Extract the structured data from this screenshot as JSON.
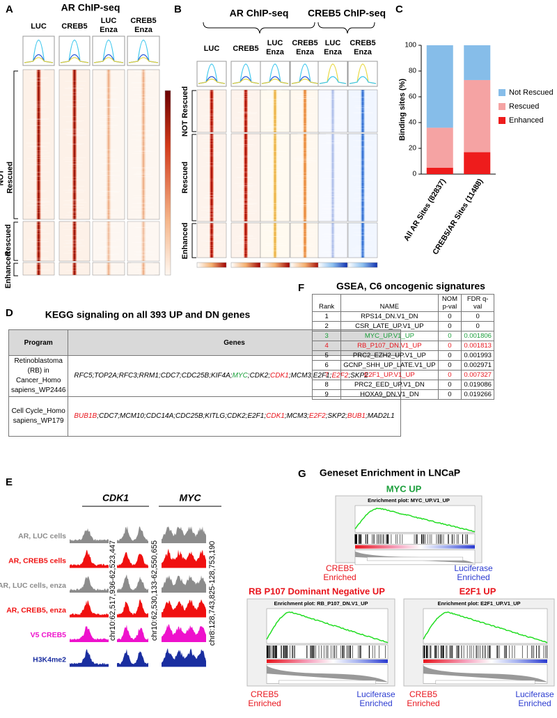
{
  "chart_data": {
    "type": "stacked_bar",
    "panel_label": "C",
    "ylabel": "Binding sites (%)",
    "categories": [
      "All AR Sites (82837)",
      "CREB5/AR Sites (11488)"
    ],
    "series": [
      {
        "name": "Enhanced",
        "color": "#ee1c1c",
        "values": [
          5,
          17
        ]
      },
      {
        "name": "Rescued",
        "color": "#f5a3a3",
        "values": [
          31,
          56
        ]
      },
      {
        "name": "Not Rescued",
        "color": "#86bde9",
        "values": [
          64,
          27
        ]
      }
    ],
    "ylim": [
      0,
      100
    ],
    "yticks": [
      0,
      20,
      40,
      60,
      80,
      100
    ],
    "legend": "right"
  },
  "panels": {
    "A": {
      "label": "A",
      "title": "AR ChIP-seq",
      "columns": [
        [
          "LUC"
        ],
        [
          "CREB5"
        ],
        [
          "LUC",
          "Enza"
        ],
        [
          "CREB5",
          "Enza"
        ]
      ],
      "row_groups": [
        [
          "NOT",
          "Rescued"
        ],
        [
          "Rescued"
        ],
        [
          "Enhanced"
        ]
      ]
    },
    "B": {
      "label": "B",
      "titles": [
        "AR ChIP-seq",
        "CREB5 ChIP-seq"
      ],
      "columns": [
        [
          "LUC"
        ],
        [
          "CREB5"
        ],
        [
          "LUC",
          "Enza"
        ],
        [
          "CREB5",
          "Enza"
        ],
        [
          "LUC",
          "Enza"
        ],
        [
          "CREB5",
          "Enza"
        ]
      ],
      "row_groups": [
        [
          "NOT Rescued"
        ],
        [
          "Rescued"
        ],
        [
          "Enhanced"
        ]
      ]
    },
    "D": {
      "label": "D",
      "title": "KEGG signaling on all 393 UP and DN genes",
      "header": [
        "Program",
        "Genes"
      ],
      "separator": ";",
      "rows": [
        {
          "program": "Retinoblastoma (RB) in Cancer_Homo sapiens_WP2446",
          "genes": [
            "RFC5",
            "TOP2A",
            "RFC3",
            "RRM1",
            "CDC7",
            "CDC25B",
            "KIF4A",
            "MYC",
            "CDK2",
            "CDK1",
            "MCM3",
            "E2F1",
            "E2F2",
            "SKP2"
          ],
          "colors": [
            "#000",
            "#000",
            "#000",
            "#000",
            "#000",
            "#000",
            "#000",
            "#1a9e3a",
            "#000",
            "#e8141c",
            "#000",
            "#000",
            "#e8141c",
            "#000"
          ]
        },
        {
          "program": "Cell Cycle_Homo sapiens_WP179",
          "genes": [
            "BUB1B",
            "CDC7",
            "MCM10",
            "CDC14A",
            "CDC25B",
            "KITLG",
            "CDK2",
            "E2F1",
            "CDK1",
            "MCM3",
            "E2F2",
            "SKP2",
            "BUB1",
            "MAD2L1"
          ],
          "colors": [
            "#e8141c",
            "#000",
            "#000",
            "#000",
            "#000",
            "#000",
            "#000",
            "#000",
            "#e8141c",
            "#000",
            "#e8141c",
            "#000",
            "#e8141c",
            "#000"
          ]
        }
      ]
    },
    "E": {
      "label": "E",
      "genes": [
        "CDK1",
        "MYC"
      ],
      "tracks": [
        {
          "label": "AR, LUC cells",
          "color": "#8c8c8c"
        },
        {
          "label": "AR, CREB5 cells",
          "color": "#f01010"
        },
        {
          "label": "AR, LUC cells, enza",
          "color": "#8c8c8c"
        },
        {
          "label": "AR, CREB5, enza",
          "color": "#f01010"
        },
        {
          "label": "V5 CREB5",
          "color": "#ee11cc"
        },
        {
          "label": "H3K4me2",
          "color": "#1a2ea0"
        }
      ],
      "coordinates": [
        "chr10:62,517,936-62,523,447",
        "chr10:62,530,133-62,550,655",
        "chr8:128,743,825-128,753,190"
      ]
    },
    "F": {
      "label": "F",
      "title": "GSEA, C6 oncogenic signatures",
      "header": [
        "Rank",
        "NAME",
        "NOM p-val",
        "FDR q-val"
      ],
      "rows": [
        [
          1,
          "RPS14_DN.V1_DN",
          0,
          0
        ],
        [
          2,
          "CSR_LATE_UP.V1_UP",
          0,
          0
        ],
        [
          3,
          "MYC_UP.V1_UP",
          0,
          0.001806
        ],
        [
          4,
          "RB_P107_DN.V1_UP",
          0,
          0.001813
        ],
        [
          5,
          "PRC2_EZH2_UP.V1_UP",
          0,
          0.001993
        ],
        [
          6,
          "GCNP_SHH_UP_LATE.V1_UP",
          0,
          0.002971
        ],
        [
          7,
          "E2F1_UP.V1_UP",
          0,
          0.007327
        ],
        [
          8,
          "PRC2_EED_UP.V1_DN",
          0,
          0.019086
        ],
        [
          9,
          "HOXA9_DN.V1_DN",
          0,
          0.019266
        ]
      ],
      "row_colors": [
        "#000",
        "#000",
        "#1a9e3a",
        "#e8141c",
        "#000",
        "#000",
        "#e8141c",
        "#000",
        "#000"
      ]
    },
    "G": {
      "label": "G",
      "title": "Geneset Enrichment in LNCaP",
      "left_label": [
        "CREB5",
        "Enriched"
      ],
      "right_label": [
        "Luciferase",
        "Enriched"
      ],
      "plots": [
        {
          "title": "MYC UP",
          "color": "#1a9e3a",
          "inner_title": "Enrichment plot: MYC_UP.V1_UP"
        },
        {
          "title": "RB P107 Dominant Negative UP",
          "color": "#e8141c",
          "inner_title": "Enrichment plot: RB_P107_DN.V1_UP"
        },
        {
          "title": "E2F1 UP",
          "color": "#e8141c",
          "inner_title": "Enrichment plot: E2F1_UP.V1_UP"
        }
      ]
    }
  }
}
